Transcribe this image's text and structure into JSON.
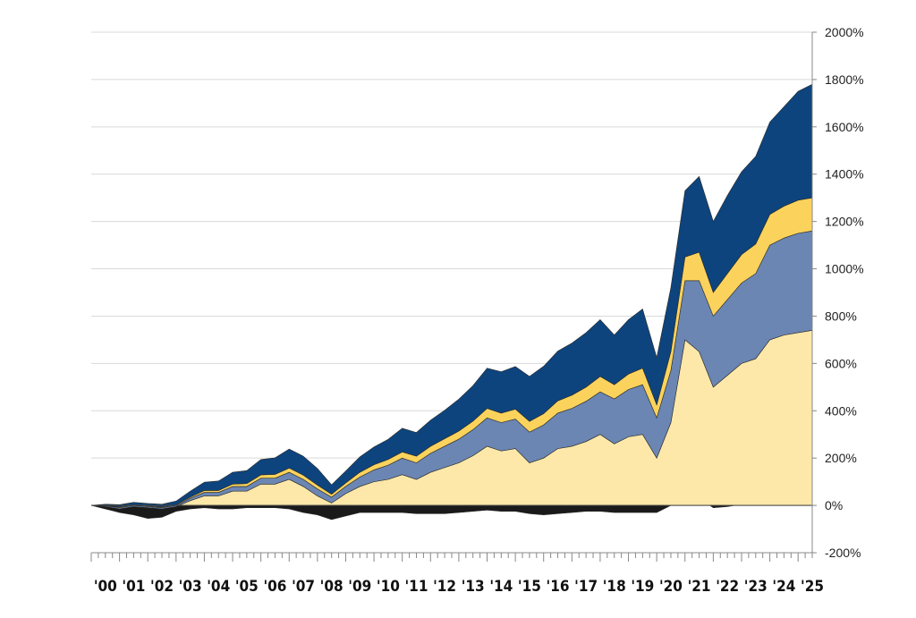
{
  "chart_data": {
    "type": "area",
    "stacked": true,
    "title": "",
    "xlabel": "",
    "ylabel": "",
    "ylim": [
      -200,
      2000
    ],
    "yticks": [
      -200,
      0,
      200,
      400,
      600,
      800,
      1000,
      1200,
      1400,
      1600,
      1800,
      2000
    ],
    "ytick_labels": [
      "-200%",
      "0%",
      "200%",
      "400%",
      "600%",
      "800%",
      "1000%",
      "1200%",
      "1400%",
      "1600%",
      "1800%",
      "2000%"
    ],
    "xlim": [
      2000,
      2025.5
    ],
    "xtick_labels": [
      "'00",
      "'01",
      "'02",
      "'03",
      "'04",
      "'05",
      "'06",
      "'07",
      "'08",
      "'09",
      "'10",
      "'11",
      "'12",
      "'13",
      "'14",
      "'15",
      "'16",
      "'17",
      "'18",
      "'19",
      "'20",
      "'21",
      "'22",
      "'23",
      "'24",
      "'25"
    ],
    "grid": true,
    "legend": "none",
    "x": [
      2000,
      2000.5,
      2001,
      2001.5,
      2002,
      2002.5,
      2003,
      2003.5,
      2004,
      2004.5,
      2005,
      2005.5,
      2006,
      2006.5,
      2007,
      2007.5,
      2008,
      2008.5,
      2009,
      2009.5,
      2010,
      2010.5,
      2011,
      2011.5,
      2012,
      2012.5,
      2013,
      2013.5,
      2014,
      2014.5,
      2015,
      2015.5,
      2016,
      2016.5,
      2017,
      2017.5,
      2018,
      2018.5,
      2019,
      2019.5,
      2020,
      2020.5,
      2021,
      2021.5,
      2022,
      2022.5,
      2023,
      2023.5,
      2024,
      2024.5,
      2025,
      2025.5
    ],
    "series": [
      {
        "color": "#1a1a1a",
        "values": [
          0,
          -15,
          -30,
          -40,
          -55,
          -50,
          -25,
          -15,
          -10,
          -15,
          -15,
          -10,
          -10,
          -10,
          -15,
          -30,
          -40,
          -60,
          -45,
          -30,
          -30,
          -30,
          -30,
          -35,
          -35,
          -35,
          -30,
          -25,
          -20,
          -25,
          -25,
          -35,
          -40,
          -35,
          -30,
          -25,
          -25,
          -30,
          -30,
          -30,
          -30,
          0,
          60,
          30,
          -10,
          -5,
          5,
          10,
          15,
          20,
          25,
          30
        ]
      },
      {
        "color": "#fde8a9",
        "values": [
          0,
          -5,
          -15,
          -5,
          -10,
          -15,
          -5,
          20,
          40,
          40,
          60,
          60,
          90,
          90,
          110,
          80,
          40,
          10,
          50,
          80,
          100,
          110,
          130,
          110,
          140,
          160,
          180,
          210,
          250,
          230,
          240,
          180,
          200,
          240,
          250,
          270,
          300,
          260,
          290,
          300,
          200,
          350,
          700,
          650,
          500,
          550,
          600,
          620,
          700,
          720,
          730,
          740
        ]
      },
      {
        "color": "#6b86b3",
        "values": [
          0,
          3,
          5,
          5,
          5,
          5,
          5,
          10,
          15,
          15,
          20,
          20,
          25,
          25,
          30,
          30,
          30,
          25,
          30,
          40,
          50,
          60,
          70,
          70,
          80,
          90,
          100,
          110,
          120,
          120,
          125,
          130,
          140,
          150,
          160,
          170,
          180,
          190,
          200,
          210,
          170,
          220,
          250,
          300,
          300,
          320,
          340,
          360,
          400,
          410,
          420,
          420
        ]
      },
      {
        "color": "#fbd35c",
        "values": [
          0,
          2,
          3,
          3,
          3,
          3,
          3,
          5,
          8,
          8,
          10,
          12,
          14,
          16,
          18,
          18,
          16,
          12,
          15,
          20,
          22,
          24,
          26,
          28,
          30,
          32,
          34,
          36,
          40,
          40,
          42,
          45,
          48,
          52,
          56,
          60,
          65,
          60,
          65,
          70,
          55,
          80,
          100,
          120,
          100,
          110,
          120,
          125,
          130,
          135,
          140,
          140
        ]
      },
      {
        "color": "#0d447d",
        "values": [
          0,
          5,
          10,
          10,
          10,
          12,
          15,
          25,
          35,
          40,
          50,
          55,
          65,
          70,
          80,
          80,
          70,
          40,
          50,
          65,
          75,
          85,
          100,
          100,
          110,
          120,
          135,
          150,
          170,
          175,
          180,
          190,
          200,
          210,
          220,
          230,
          240,
          210,
          230,
          250,
          200,
          270,
          280,
          320,
          300,
          330,
          350,
          370,
          390,
          420,
          460,
          480
        ]
      }
    ]
  }
}
